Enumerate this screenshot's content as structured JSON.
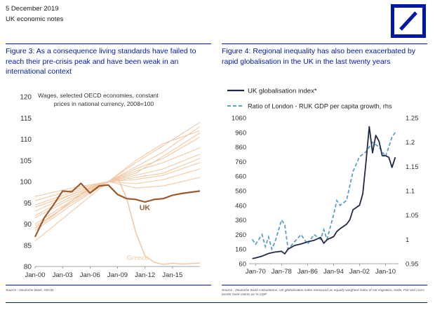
{
  "header": {
    "date": "5 December 2019",
    "subtitle": "UK economic notes",
    "accent_color": "#0018a8",
    "logo": "deutsche-bank-slash-logo"
  },
  "fig3": {
    "title": "Figure 3: As a consequence living standards have failed to reach their pre-crisis peak and have been weak in an international context",
    "source": "Source : Deutsche Bank, OECD"
  },
  "fig4": {
    "title": "Figure 4: Regional inequality has also been exacerbated by rapid globalisation in the UK in the last twenty years",
    "source": "Source : Deutsche Bank Calculations. UK globalisation index measured as equally weighted index of net migration, trade, FDI and cross border bank claims as % GDP"
  },
  "chart_data": [
    {
      "type": "line",
      "title": "Wages, selected OECD economies, constant prices in national currency, 2008=100",
      "ylim": [
        80,
        120
      ],
      "yticks": [
        80,
        85,
        90,
        95,
        100,
        105,
        110,
        115,
        120
      ],
      "xlim": [
        2000,
        2018
      ],
      "xtick_labels": [
        "Jan-00",
        "Jan-03",
        "Jan-06",
        "Jan-09",
        "Jan-12",
        "Jan-15"
      ],
      "xtick_values": [
        2000,
        2003,
        2006,
        2009,
        2012,
        2015
      ],
      "grid": false,
      "colors": {
        "uk": "#9c5b2e",
        "others": "#f2c9a4",
        "greece": "#f2c9a4"
      },
      "series": [
        {
          "name": "UK",
          "label_on_chart": true,
          "highlight": true,
          "x": [
            2000,
            2001,
            2002,
            2003,
            2004,
            2005,
            2006,
            2007,
            2008,
            2009,
            2010,
            2011,
            2012,
            2013,
            2014,
            2015,
            2016,
            2017,
            2018
          ],
          "values": [
            87.0,
            91.5,
            94.5,
            97.8,
            97.6,
            99.6,
            97.3,
            99.0,
            99.2,
            97.0,
            96.0,
            95.8,
            95.2,
            95.8,
            96.0,
            96.8,
            97.2,
            97.5,
            97.8
          ]
        },
        {
          "name": "Greece",
          "label_on_chart": true,
          "highlight": false,
          "x": [
            2000,
            2002,
            2004,
            2006,
            2008,
            2009,
            2010,
            2011,
            2012,
            2013,
            2014,
            2015,
            2016,
            2017,
            2018
          ],
          "values": [
            89.0,
            92.0,
            95.5,
            98.5,
            100.0,
            101.0,
            96.0,
            88.0,
            82.5,
            81.0,
            80.5,
            80.8,
            80.6,
            80.7,
            80.8
          ]
        },
        {
          "x": [
            2000,
            2004,
            2008,
            2011,
            2014,
            2018
          ],
          "values": [
            86.0,
            93.0,
            100.0,
            103.5,
            107.0,
            113.0
          ]
        },
        {
          "x": [
            2000,
            2004,
            2008,
            2011,
            2014,
            2018
          ],
          "values": [
            88.5,
            94.5,
            100.0,
            104.5,
            108.5,
            114.0
          ]
        },
        {
          "x": [
            2000,
            2004,
            2008,
            2011,
            2014,
            2018
          ],
          "values": [
            90.0,
            95.5,
            100.0,
            103.0,
            105.5,
            110.5
          ]
        },
        {
          "x": [
            2000,
            2004,
            2008,
            2011,
            2014,
            2018
          ],
          "values": [
            91.5,
            96.0,
            100.0,
            102.5,
            104.5,
            108.0
          ]
        },
        {
          "x": [
            2000,
            2004,
            2008,
            2011,
            2014,
            2018
          ],
          "values": [
            93.0,
            97.0,
            100.0,
            101.5,
            103.0,
            106.5
          ]
        },
        {
          "x": [
            2000,
            2004,
            2008,
            2011,
            2014,
            2018
          ],
          "values": [
            94.5,
            97.5,
            100.0,
            100.5,
            101.5,
            104.5
          ]
        },
        {
          "x": [
            2000,
            2004,
            2008,
            2011,
            2014,
            2018
          ],
          "values": [
            95.5,
            98.0,
            100.0,
            99.5,
            100.5,
            103.0
          ]
        },
        {
          "x": [
            2000,
            2004,
            2008,
            2011,
            2014,
            2018
          ],
          "values": [
            92.0,
            96.5,
            100.0,
            102.0,
            106.0,
            111.5
          ]
        },
        {
          "x": [
            2000,
            2004,
            2008,
            2011,
            2014,
            2018
          ],
          "values": [
            96.5,
            98.5,
            100.0,
            98.5,
            99.0,
            101.0
          ]
        },
        {
          "x": [
            2000,
            2004,
            2008,
            2011,
            2014,
            2018
          ],
          "values": [
            89.5,
            95.0,
            100.0,
            105.0,
            109.0,
            112.0
          ]
        },
        {
          "x": [
            2000,
            2004,
            2008,
            2011,
            2014,
            2018
          ],
          "values": [
            94.0,
            97.0,
            100.0,
            101.0,
            102.0,
            105.5
          ]
        }
      ]
    },
    {
      "type": "line",
      "legend": [
        "UK globalisation index*",
        "Ratio of London - RUK GDP per capita growth, rhs"
      ],
      "legend_position": "top-left",
      "grid": false,
      "xlim": [
        1968,
        2014
      ],
      "xtick_labels": [
        "Jan-70",
        "Jan-78",
        "Jan-86",
        "Jan-94",
        "Jan-02",
        "Jan-10"
      ],
      "xtick_values": [
        1970,
        1978,
        1986,
        1994,
        2002,
        2010
      ],
      "ylim_left": [
        60,
        1060
      ],
      "yticks_left": [
        60,
        160,
        260,
        360,
        460,
        560,
        660,
        760,
        860,
        960,
        1060
      ],
      "ylim_right": [
        0.95,
        1.25
      ],
      "yticks_right": [
        "0.95",
        "1",
        "1.05",
        "1.1",
        "1.15",
        "1.2",
        "1.25"
      ],
      "colors": {
        "globalisation": "#1f2a44",
        "ratio": "#5aa0c8"
      },
      "series": [
        {
          "name": "UK globalisation index*",
          "axis": "left",
          "style": "solid",
          "x": [
            1969,
            1970,
            1972,
            1974,
            1976,
            1978,
            1979,
            1980,
            1982,
            1984,
            1986,
            1988,
            1990,
            1991,
            1992,
            1994,
            1995,
            1996,
            1998,
            1999,
            2000,
            2002,
            2003,
            2004,
            2005,
            2006,
            2007,
            2008,
            2009,
            2010,
            2011,
            2012,
            2013
          ],
          "values": [
            95,
            100,
            112,
            130,
            140,
            145,
            128,
            160,
            185,
            195,
            210,
            220,
            240,
            200,
            225,
            245,
            280,
            300,
            330,
            360,
            430,
            460,
            540,
            760,
            1000,
            820,
            940,
            900,
            800,
            800,
            790,
            720,
            790
          ]
        },
        {
          "name": "Ratio of London - RUK GDP per capita growth, rhs",
          "axis": "right",
          "style": "dashed",
          "x": [
            1969,
            1970,
            1972,
            1973,
            1974,
            1975,
            1976,
            1978,
            1979,
            1980,
            1982,
            1984,
            1986,
            1987,
            1988,
            1990,
            1991,
            1992,
            1994,
            1995,
            1996,
            1998,
            2000,
            2002,
            2004,
            2006,
            2008,
            2010,
            2012,
            2013
          ],
          "values": [
            1.0,
            0.99,
            1.01,
            0.985,
            1.005,
            0.98,
            0.995,
            1.04,
            1.03,
            0.98,
            0.995,
            1.01,
            0.99,
            1.0,
            1.01,
            1.0,
            1.02,
            1.0,
            1.05,
            1.08,
            1.07,
            1.08,
            1.14,
            1.17,
            1.18,
            1.2,
            1.19,
            1.17,
            1.21,
            1.22
          ]
        }
      ]
    }
  ]
}
